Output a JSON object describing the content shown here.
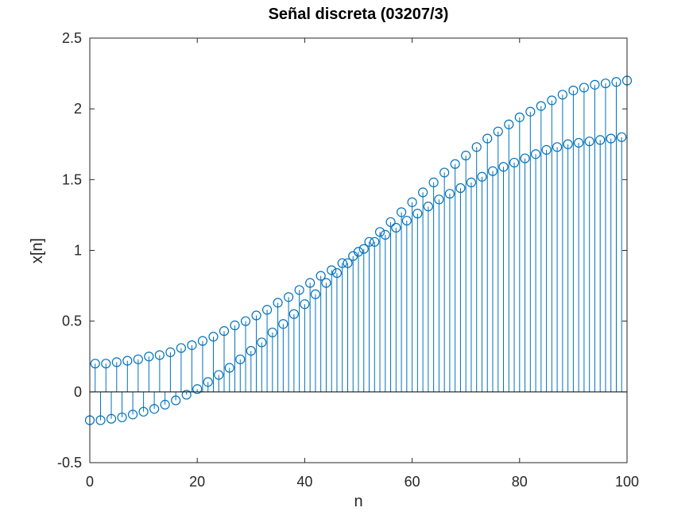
{
  "chart_data": {
    "type": "stem",
    "title": "Señal discreta (03207/3)",
    "xlabel": "n",
    "ylabel": "x[n]",
    "xlim": [
      0,
      100
    ],
    "ylim": [
      -0.5,
      2.5
    ],
    "xticks": [
      "0",
      "20",
      "40",
      "60",
      "80",
      "100"
    ],
    "yticks": [
      "-0.5",
      "0",
      "0.5",
      "1",
      "1.5",
      "2",
      "2.5"
    ],
    "grid": false,
    "marker": "circle",
    "color": "#0072bd",
    "n": [
      0,
      1,
      2,
      3,
      4,
      5,
      6,
      7,
      8,
      9,
      10,
      11,
      12,
      13,
      14,
      15,
      16,
      17,
      18,
      19,
      20,
      21,
      22,
      23,
      24,
      25,
      26,
      27,
      28,
      29,
      30,
      31,
      32,
      33,
      34,
      35,
      36,
      37,
      38,
      39,
      40,
      41,
      42,
      43,
      44,
      45,
      46,
      47,
      48,
      49,
      50,
      51,
      52,
      53,
      54,
      55,
      56,
      57,
      58,
      59,
      60,
      61,
      62,
      63,
      64,
      65,
      66,
      67,
      68,
      69,
      70,
      71,
      72,
      73,
      74,
      75,
      76,
      77,
      78,
      79,
      80,
      81,
      82,
      83,
      84,
      85,
      86,
      87,
      88,
      89,
      90,
      91,
      92,
      93,
      94,
      95,
      96,
      97,
      98,
      99,
      100
    ],
    "values": [
      -0.2,
      0.2,
      -0.2,
      0.2,
      -0.19,
      0.21,
      -0.18,
      0.22,
      -0.16,
      0.23,
      -0.14,
      0.25,
      -0.12,
      0.26,
      -0.09,
      0.28,
      -0.06,
      0.31,
      -0.02,
      0.33,
      0.02,
      0.36,
      0.07,
      0.39,
      0.12,
      0.43,
      0.17,
      0.47,
      0.23,
      0.5,
      0.29,
      0.54,
      0.35,
      0.58,
      0.42,
      0.63,
      0.48,
      0.67,
      0.55,
      0.72,
      0.62,
      0.77,
      0.69,
      0.82,
      0.77,
      0.86,
      0.84,
      0.91,
      0.91,
      0.96,
      0.99,
      1.01,
      1.06,
      1.06,
      1.13,
      1.11,
      1.2,
      1.16,
      1.27,
      1.21,
      1.34,
      1.26,
      1.41,
      1.31,
      1.48,
      1.36,
      1.55,
      1.4,
      1.61,
      1.44,
      1.67,
      1.48,
      1.73,
      1.52,
      1.79,
      1.56,
      1.84,
      1.59,
      1.89,
      1.62,
      1.94,
      1.65,
      1.98,
      1.68,
      2.02,
      1.71,
      2.06,
      1.73,
      2.1,
      1.75,
      2.13,
      1.76,
      2.15,
      1.77,
      2.17,
      1.78,
      2.18,
      1.79,
      2.19,
      1.8,
      2.2
    ]
  }
}
